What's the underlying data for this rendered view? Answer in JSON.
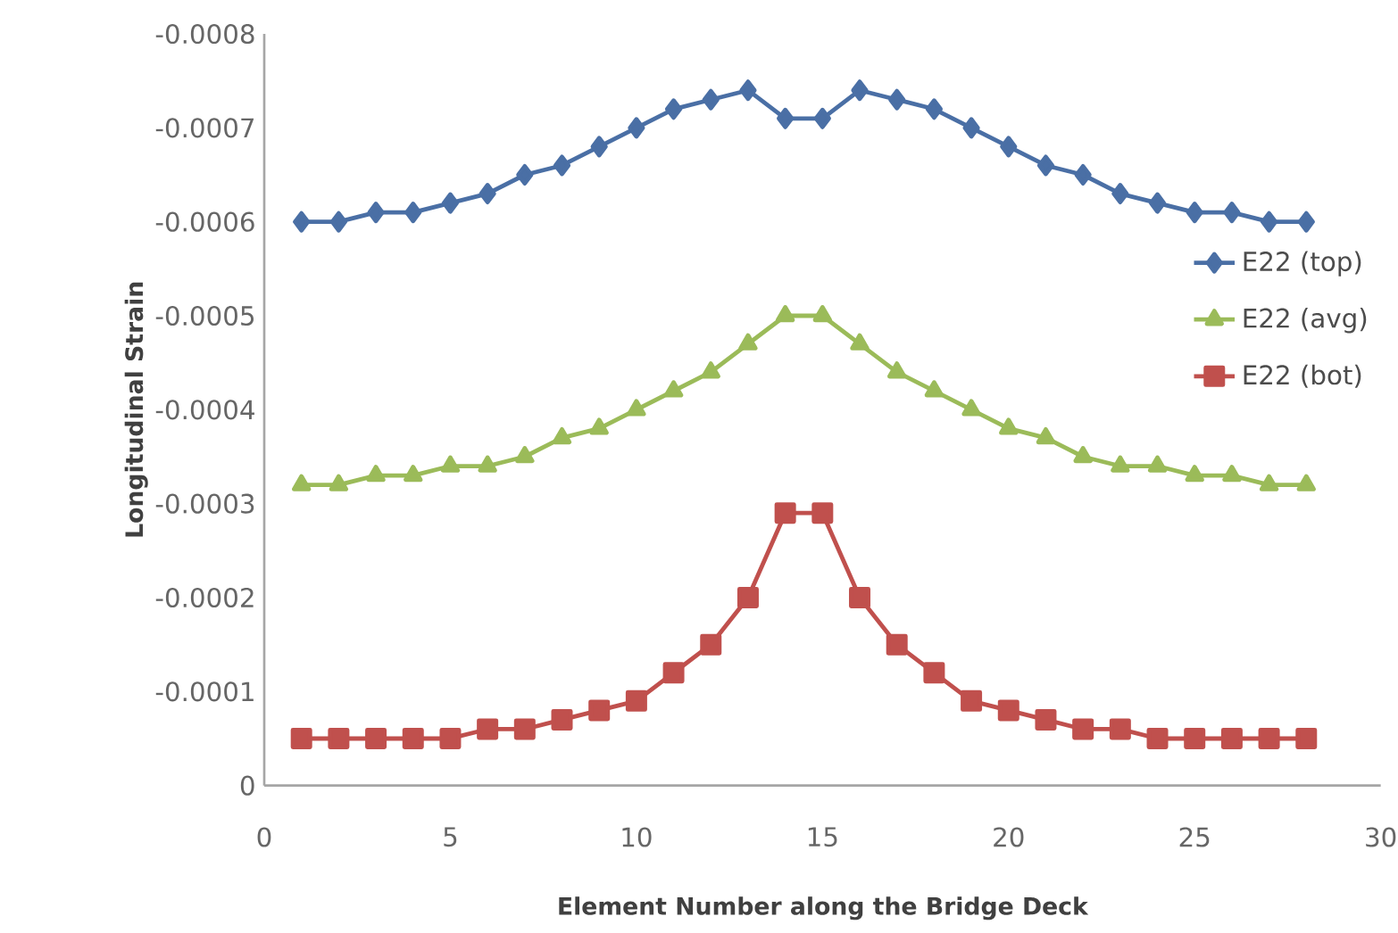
{
  "chart_data": {
    "type": "line",
    "xlabel": "Element Number along the Bridge Deck",
    "ylabel": "Longitudinal Strain",
    "x": [
      1,
      2,
      3,
      4,
      5,
      6,
      7,
      8,
      9,
      10,
      11,
      12,
      13,
      14,
      15,
      16,
      17,
      18,
      19,
      20,
      21,
      22,
      23,
      24,
      25,
      26,
      27,
      28
    ],
    "series": [
      {
        "name": "E22 (top)",
        "color": "#4a6fa5",
        "marker": "diamond",
        "values": [
          -0.0006,
          -0.0006,
          -0.00061,
          -0.00061,
          -0.00062,
          -0.00063,
          -0.00065,
          -0.00066,
          -0.00068,
          -0.0007,
          -0.00072,
          -0.00073,
          -0.00074,
          -0.00071,
          -0.00071,
          -0.00074,
          -0.00073,
          -0.00072,
          -0.0007,
          -0.00068,
          -0.00066,
          -0.00065,
          -0.00063,
          -0.00062,
          -0.00061,
          -0.00061,
          -0.0006,
          -0.0006
        ]
      },
      {
        "name": "E22 (avg)",
        "color": "#9bbb59",
        "marker": "triangle",
        "values": [
          -0.00032,
          -0.00032,
          -0.00033,
          -0.00033,
          -0.00034,
          -0.00034,
          -0.00035,
          -0.00037,
          -0.00038,
          -0.0004,
          -0.00042,
          -0.00044,
          -0.00047,
          -0.0005,
          -0.0005,
          -0.00047,
          -0.00044,
          -0.00042,
          -0.0004,
          -0.00038,
          -0.00037,
          -0.00035,
          -0.00034,
          -0.00034,
          -0.00033,
          -0.00033,
          -0.00032,
          -0.00032
        ]
      },
      {
        "name": "E22 (bot)",
        "color": "#c0504d",
        "marker": "square",
        "values": [
          -5e-05,
          -5e-05,
          -5e-05,
          -5e-05,
          -5e-05,
          -6e-05,
          -6e-05,
          -7e-05,
          -8e-05,
          -9e-05,
          -0.00012,
          -0.00015,
          -0.0002,
          -0.00029,
          -0.00029,
          -0.0002,
          -0.00015,
          -0.00012,
          -9e-05,
          -8e-05,
          -7e-05,
          -6e-05,
          -6e-05,
          -5e-05,
          -5e-05,
          -5e-05,
          -5e-05,
          -5e-05
        ]
      }
    ],
    "xlim": [
      0,
      30
    ],
    "xticks": [
      0,
      5,
      10,
      15,
      20,
      25,
      30
    ],
    "ylim": [
      0,
      -0.0008
    ],
    "yticks": [
      -0.0008,
      -0.0007,
      -0.0006,
      -0.0005,
      -0.0004,
      -0.0003,
      -0.0002,
      -0.0001,
      0
    ],
    "grid": false,
    "legend": "right"
  }
}
